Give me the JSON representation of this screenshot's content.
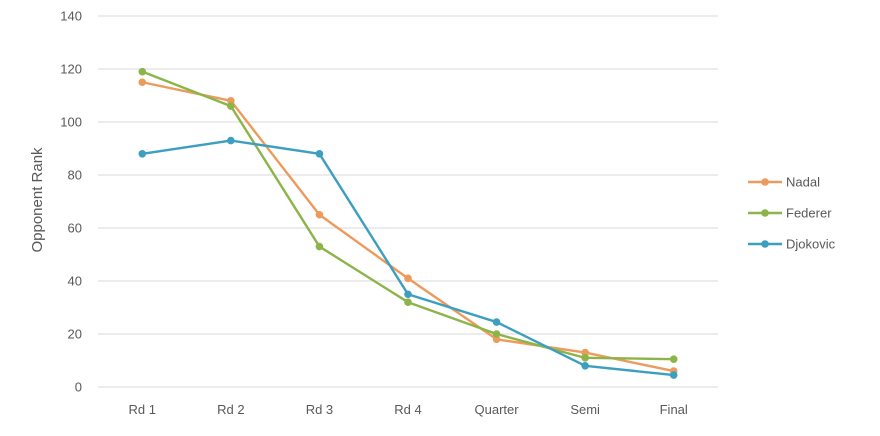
{
  "chart_data": {
    "type": "line",
    "title": "",
    "xlabel": "",
    "ylabel": "Opponent Rank",
    "ylim": [
      0,
      140
    ],
    "yticks": [
      0,
      20,
      40,
      60,
      80,
      100,
      120,
      140
    ],
    "grid": true,
    "legend_position": "right",
    "categories": [
      "Rd 1",
      "Rd 2",
      "Rd 3",
      "Rd 4",
      "Quarter",
      "Semi",
      "Final"
    ],
    "series": [
      {
        "name": "Nadal",
        "color": "#ed9b5c",
        "values": [
          115,
          108,
          65,
          41,
          18,
          13,
          6
        ]
      },
      {
        "name": "Federer",
        "color": "#8cb449",
        "values": [
          119,
          106,
          53,
          32,
          20,
          11,
          10.5
        ]
      },
      {
        "name": "Djokovic",
        "color": "#3d9fc0",
        "values": [
          88,
          93,
          88,
          35,
          24.5,
          8,
          4.5
        ]
      }
    ]
  }
}
